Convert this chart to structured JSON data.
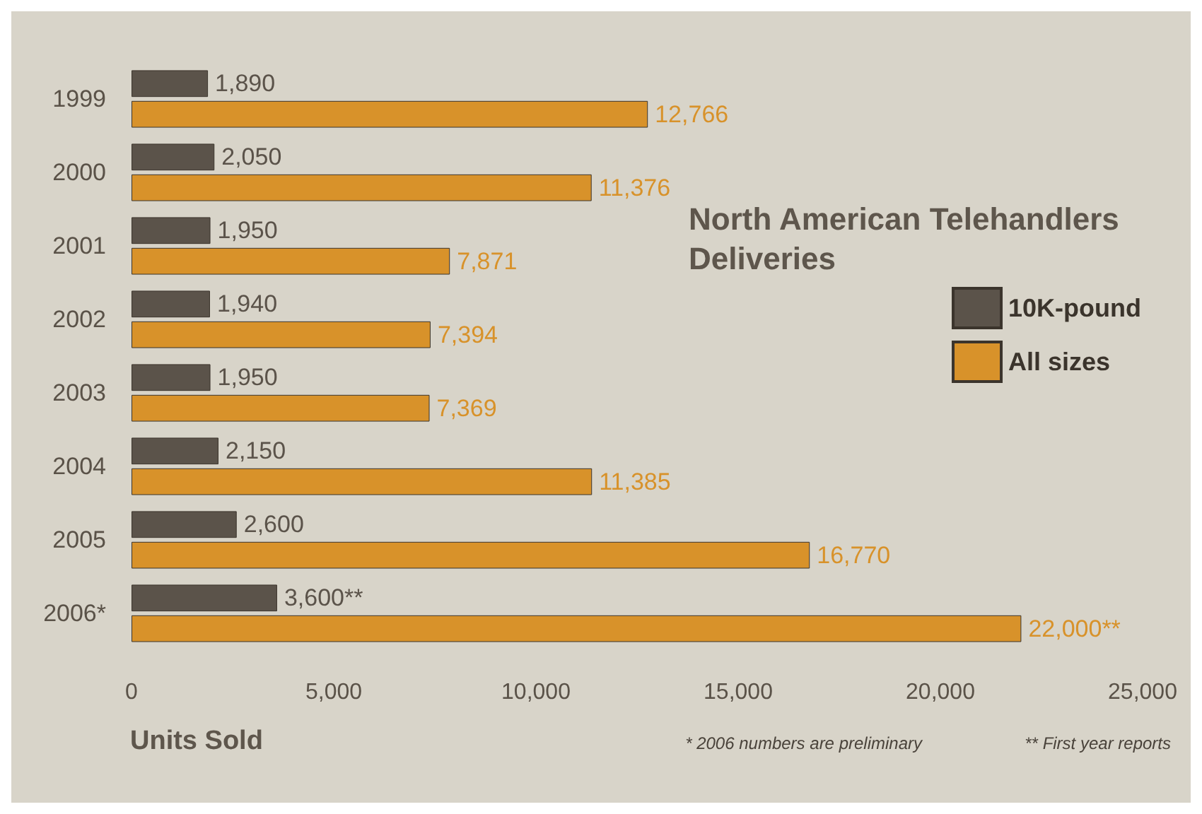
{
  "chart_data": {
    "type": "bar",
    "orientation": "horizontal",
    "title": "North American Telehandlers Deliveries",
    "xlabel": "Units Sold",
    "categories": [
      "1999",
      "2000",
      "2001",
      "2002",
      "2003",
      "2004",
      "2005",
      "2006*"
    ],
    "series": [
      {
        "name": "10K-pound",
        "color": "#5b534a",
        "values": [
          1890,
          2050,
          1950,
          1940,
          1950,
          2150,
          2600,
          3600
        ],
        "value_labels": [
          "1,890",
          "2,050",
          "1,950",
          "1,940",
          "1,950",
          "2,150",
          "2,600",
          "3,600**"
        ]
      },
      {
        "name": "All sizes",
        "color": "#d8922a",
        "values": [
          12766,
          11376,
          7871,
          7394,
          7369,
          11385,
          16770,
          22000
        ],
        "value_labels": [
          "12,766",
          "11,376",
          "7,871",
          "7,394",
          "7,369",
          "11,385",
          "16,770",
          "22,000**"
        ]
      }
    ],
    "xlim": [
      0,
      25000
    ],
    "xticks": [
      0,
      {
        "value": 5000,
        "label": "5,000"
      },
      {
        "value": 10000,
        "label": "10,000"
      },
      {
        "value": 15000,
        "label": "15,000"
      },
      {
        "value": 20000,
        "label": "20,000"
      },
      {
        "value": 25000,
        "label": "25,000"
      }
    ],
    "grid": false,
    "legend": "right",
    "annotations": [
      "* 2006 numbers are preliminary",
      "** First year reports"
    ]
  }
}
